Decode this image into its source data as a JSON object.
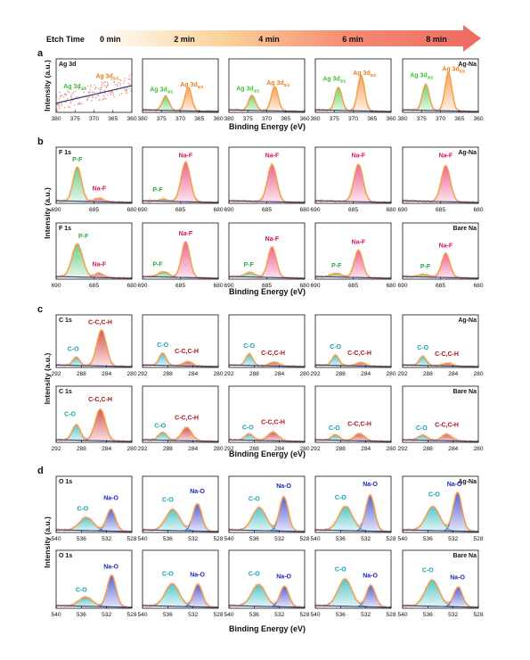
{
  "etch": {
    "label": "Etch Time",
    "times": [
      "0 min",
      "2 min",
      "4 min",
      "6 min",
      "8 min"
    ],
    "gradient_colors": [
      "#ffffff",
      "#fbd39a",
      "#f48a72",
      "#ee6a60"
    ]
  },
  "axis_label_binding": "Binding Energy (eV)",
  "axis_label_intensity": "Intensity (a.u.)",
  "colors": {
    "envelope": "#f5a33b",
    "raw": "#e88a86",
    "background": "#2f3a75",
    "ag_low": "#41c83f",
    "ag_high": "#f5892a",
    "pf": "#3fbe5c",
    "naf": "#e8306e",
    "co": "#1fb3b7",
    "cc": "#c81e1e",
    "nao": "#1f2dc8",
    "label_ag_low": "#3bbf35",
    "label_ag_high": "#f07b1a",
    "label_pf": "#2aa646",
    "label_naf": "#d4145a",
    "label_co": "#12a0b0",
    "label_cc": "#b0121a",
    "label_nao": "#1a28b8"
  },
  "panels": [
    {
      "letter": "a",
      "element": "Ag 3d",
      "sample": "Ag-Na",
      "xlim": [
        380,
        360
      ],
      "ticks": [
        380,
        375,
        370,
        365,
        360
      ],
      "peaks": [
        {
          "name": "Ag 3d3/2",
          "label_main": "Ag 3d",
          "label_sub": "3/2",
          "center": 373.9,
          "width": 0.9,
          "color_key": "ag_low",
          "label_color_key": "label_ag_low",
          "amps": [
            0,
            0.34,
            0.36,
            0.55,
            0.62
          ]
        },
        {
          "name": "Ag 3d5/2",
          "label_main": "Ag 3d",
          "label_sub": "5/2",
          "center": 367.9,
          "width": 0.9,
          "color_key": "ag_high",
          "label_color_key": "label_ag_high",
          "amps": [
            0,
            0.55,
            0.58,
            0.85,
            0.92
          ]
        }
      ],
      "data_labels": [
        [
          {
            "peak": 0,
            "x": 375.0,
            "y": 0.58
          },
          {
            "peak": 1,
            "x": 366.5,
            "y": 0.82
          }
        ],
        [
          {
            "peak": 0,
            "x": 375.0,
            "y": 0.5
          },
          {
            "peak": 1,
            "x": 367.0,
            "y": 0.62
          }
        ],
        [
          {
            "peak": 0,
            "x": 375.0,
            "y": 0.52
          },
          {
            "peak": 1,
            "x": 367.0,
            "y": 0.66
          }
        ],
        [
          {
            "peak": 0,
            "x": 375.0,
            "y": 0.76
          },
          {
            "peak": 1,
            "x": 367.0,
            "y": 0.9
          }
        ],
        [
          {
            "peak": 0,
            "x": 375.0,
            "y": 0.84
          },
          {
            "peak": 1,
            "x": 366.5,
            "y": 0.99
          }
        ]
      ]
    },
    {
      "letter": "b",
      "element": "F 1s",
      "sample": "Ag-Na",
      "xlim": [
        690,
        680
      ],
      "ticks": [
        690,
        685,
        680
      ],
      "peaks": [
        {
          "name": "P-F",
          "label_main": "P-F",
          "label_sub": "",
          "center": 687.2,
          "width": 0.55,
          "color_key": "pf",
          "label_color_key": "label_pf",
          "amps": [
            0.78,
            0.05,
            0.0,
            0.0,
            0.0
          ]
        },
        {
          "name": "Na-F",
          "label_main": "Na-F",
          "label_sub": "",
          "center": 684.3,
          "width": 0.6,
          "color_key": "naf",
          "label_color_key": "label_naf",
          "amps": [
            0.08,
            0.9,
            0.85,
            0.85,
            0.82
          ]
        }
      ],
      "data_labels": [
        [
          {
            "peak": 0,
            "x": 687.2,
            "y": 0.96
          },
          {
            "peak": 1,
            "x": 684.3,
            "y": 0.3
          }
        ],
        [
          {
            "peak": 0,
            "x": 688.0,
            "y": 0.26
          },
          {
            "peak": 1,
            "x": 684.3,
            "y": 1.05
          }
        ],
        [
          {
            "peak": 1,
            "x": 684.3,
            "y": 1.05
          }
        ],
        [
          {
            "peak": 1,
            "x": 684.3,
            "y": 1.05
          }
        ],
        [
          {
            "peak": 1,
            "x": 684.3,
            "y": 1.05
          }
        ]
      ]
    },
    {
      "letter": "",
      "element": "F 1s",
      "sample": "Bare Na",
      "xlim": [
        690,
        680
      ],
      "ticks": [
        690,
        685,
        680
      ],
      "peaks": [
        {
          "name": "P-F",
          "label_main": "P-F",
          "label_sub": "",
          "center": 687.2,
          "width": 0.7,
          "color_key": "pf",
          "label_color_key": "label_pf",
          "amps": [
            0.75,
            0.12,
            0.1,
            0.08,
            0.06
          ]
        },
        {
          "name": "Na-F",
          "label_main": "Na-F",
          "label_sub": "",
          "center": 684.3,
          "width": 0.55,
          "color_key": "naf",
          "label_color_key": "label_naf",
          "amps": [
            0.1,
            0.82,
            0.7,
            0.62,
            0.55
          ]
        }
      ],
      "data_labels": [
        [
          {
            "peak": 0,
            "x": 686.4,
            "y": 0.94
          },
          {
            "peak": 1,
            "x": 684.3,
            "y": 0.3
          }
        ],
        [
          {
            "peak": 0,
            "x": 688.0,
            "y": 0.3
          },
          {
            "peak": 1,
            "x": 684.3,
            "y": 1.0
          }
        ],
        [
          {
            "peak": 0,
            "x": 687.4,
            "y": 0.28
          },
          {
            "peak": 1,
            "x": 684.3,
            "y": 0.88
          }
        ],
        [
          {
            "peak": 0,
            "x": 687.2,
            "y": 0.26
          },
          {
            "peak": 1,
            "x": 684.3,
            "y": 0.8
          }
        ],
        [
          {
            "peak": 0,
            "x": 687.0,
            "y": 0.24
          },
          {
            "peak": 1,
            "x": 684.3,
            "y": 0.72
          }
        ]
      ]
    },
    {
      "letter": "c",
      "element": "C 1s",
      "sample": "Ag-Na",
      "xlim": [
        292,
        280
      ],
      "ticks": [
        292,
        288,
        284,
        280
      ],
      "peaks": [
        {
          "name": "C-O",
          "label_main": "C-O",
          "label_sub": "",
          "center": 288.8,
          "width": 0.55,
          "color_key": "co",
          "label_color_key": "label_co",
          "amps": [
            0.2,
            0.3,
            0.28,
            0.25,
            0.22
          ]
        },
        {
          "name": "C-C,C-H",
          "label_main": "C-C,C-H",
          "label_sub": "",
          "center": 284.8,
          "width": 0.75,
          "color_key": "cc",
          "label_color_key": "label_cc",
          "amps": [
            0.88,
            0.1,
            0.09,
            0.08,
            0.07
          ]
        }
      ],
      "data_labels": [
        [
          {
            "peak": 0,
            "x": 289.3,
            "y": 0.4
          },
          {
            "peak": 1,
            "x": 285.0,
            "y": 1.05
          }
        ],
        [
          {
            "peak": 0,
            "x": 288.8,
            "y": 0.5
          },
          {
            "peak": 1,
            "x": 285.0,
            "y": 0.35
          }
        ],
        [
          {
            "peak": 0,
            "x": 288.8,
            "y": 0.48
          },
          {
            "peak": 1,
            "x": 285.0,
            "y": 0.3
          }
        ],
        [
          {
            "peak": 0,
            "x": 288.8,
            "y": 0.46
          },
          {
            "peak": 1,
            "x": 285.0,
            "y": 0.3
          }
        ],
        [
          {
            "peak": 0,
            "x": 288.8,
            "y": 0.44
          },
          {
            "peak": 1,
            "x": 285.0,
            "y": 0.28
          }
        ]
      ]
    },
    {
      "letter": "",
      "element": "C 1s",
      "sample": "Bare Na",
      "xlim": [
        292,
        280
      ],
      "ticks": [
        292,
        288,
        284,
        280
      ],
      "peaks": [
        {
          "name": "C-O",
          "label_main": "C-O",
          "label_sub": "",
          "center": 288.8,
          "width": 0.65,
          "color_key": "co",
          "label_color_key": "label_co",
          "amps": [
            0.35,
            0.18,
            0.14,
            0.12,
            0.12
          ]
        },
        {
          "name": "C-C,C-H",
          "label_main": "C-C,C-H",
          "label_sub": "",
          "center": 285.0,
          "width": 0.8,
          "color_key": "cc",
          "label_color_key": "label_cc",
          "amps": [
            0.72,
            0.3,
            0.2,
            0.16,
            0.15
          ]
        }
      ],
      "data_labels": [
        [
          {
            "peak": 0,
            "x": 289.8,
            "y": 0.6
          },
          {
            "peak": 1,
            "x": 285.0,
            "y": 0.94
          }
        ],
        [
          {
            "peak": 0,
            "x": 289.2,
            "y": 0.34
          },
          {
            "peak": 1,
            "x": 285.0,
            "y": 0.52
          }
        ],
        [
          {
            "peak": 0,
            "x": 289.0,
            "y": 0.3
          },
          {
            "peak": 1,
            "x": 285.0,
            "y": 0.42
          }
        ],
        [
          {
            "peak": 0,
            "x": 289.0,
            "y": 0.28
          },
          {
            "peak": 1,
            "x": 285.0,
            "y": 0.38
          }
        ],
        [
          {
            "peak": 0,
            "x": 289.0,
            "y": 0.28
          },
          {
            "peak": 1,
            "x": 285.0,
            "y": 0.36
          }
        ]
      ]
    },
    {
      "letter": "d",
      "element": "O 1s",
      "sample": "Ag-Na",
      "xlim": [
        540,
        528
      ],
      "ticks": [
        540,
        536,
        532,
        528
      ],
      "peaks": [
        {
          "name": "C-O",
          "label_main": "C-O",
          "label_sub": "",
          "center": 535.2,
          "width": 1.1,
          "color_key": "co",
          "label_color_key": "label_co",
          "amps": [
            0.3,
            0.48,
            0.52,
            0.55,
            0.55
          ]
        },
        {
          "name": "Na-O",
          "label_main": "Na-O",
          "label_sub": "",
          "center": 531.3,
          "width": 0.7,
          "color_key": "nao",
          "label_color_key": "label_nao",
          "amps": [
            0.5,
            0.62,
            0.78,
            0.82,
            0.88
          ]
        }
      ],
      "data_labels": [
        [
          {
            "peak": 0,
            "x": 535.8,
            "y": 0.5
          },
          {
            "peak": 1,
            "x": 531.3,
            "y": 0.74
          }
        ],
        [
          {
            "peak": 0,
            "x": 536.0,
            "y": 0.7
          },
          {
            "peak": 1,
            "x": 531.3,
            "y": 0.9
          }
        ],
        [
          {
            "peak": 0,
            "x": 536.0,
            "y": 0.72
          },
          {
            "peak": 1,
            "x": 531.3,
            "y": 1.02
          }
        ],
        [
          {
            "peak": 0,
            "x": 536.0,
            "y": 0.75
          },
          {
            "peak": 1,
            "x": 531.3,
            "y": 1.06
          }
        ],
        [
          {
            "peak": 0,
            "x": 535.0,
            "y": 0.82
          },
          {
            "peak": 1,
            "x": 531.8,
            "y": 1.06
          }
        ]
      ]
    },
    {
      "letter": "",
      "element": "O 1s",
      "sample": "Bare Na",
      "xlim": [
        540,
        528
      ],
      "ticks": [
        540,
        536,
        532,
        528
      ],
      "peaks": [
        {
          "name": "C-O",
          "label_main": "C-O",
          "label_sub": "",
          "center": 535.3,
          "width": 1.1,
          "color_key": "co",
          "label_color_key": "label_co",
          "amps": [
            0.2,
            0.5,
            0.48,
            0.6,
            0.58
          ]
        },
        {
          "name": "Na-O",
          "label_main": "Na-O",
          "label_sub": "",
          "center": 531.2,
          "width": 0.7,
          "color_key": "nao",
          "label_color_key": "label_nao",
          "amps": [
            0.7,
            0.5,
            0.46,
            0.48,
            0.44
          ]
        }
      ],
      "data_labels": [
        [
          {
            "peak": 0,
            "x": 536.0,
            "y": 0.36
          },
          {
            "peak": 1,
            "x": 531.3,
            "y": 0.88
          }
        ],
        [
          {
            "peak": 0,
            "x": 536.0,
            "y": 0.72
          },
          {
            "peak": 1,
            "x": 531.3,
            "y": 0.7
          }
        ],
        [
          {
            "peak": 0,
            "x": 536.0,
            "y": 0.72
          },
          {
            "peak": 1,
            "x": 531.3,
            "y": 0.66
          }
        ],
        [
          {
            "peak": 0,
            "x": 536.0,
            "y": 0.82
          },
          {
            "peak": 1,
            "x": 531.3,
            "y": 0.68
          }
        ],
        [
          {
            "peak": 0,
            "x": 536.0,
            "y": 0.8
          },
          {
            "peak": 1,
            "x": 531.3,
            "y": 0.64
          }
        ]
      ]
    }
  ]
}
